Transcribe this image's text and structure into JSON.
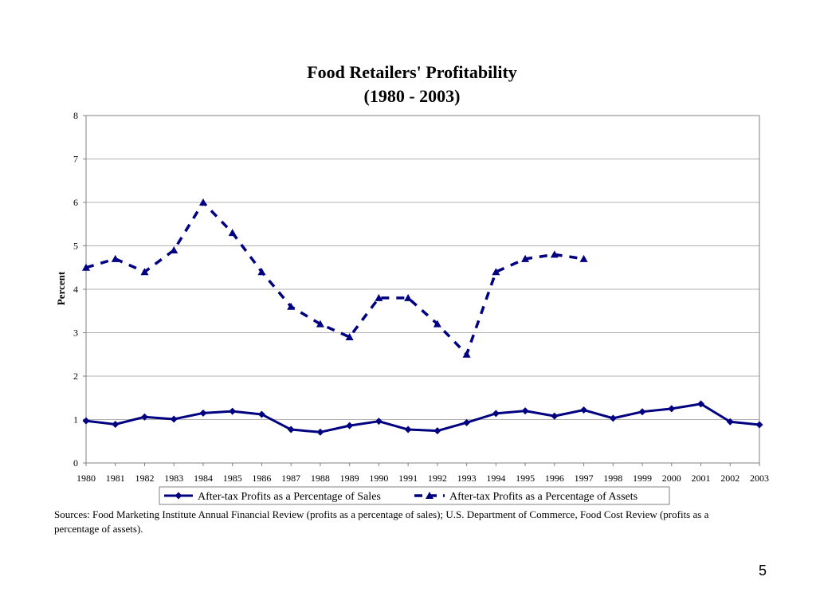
{
  "chart_data": {
    "type": "line",
    "title": "Food Retailers' Profitability",
    "subtitle": "(1980 - 2003)",
    "xlabel": "",
    "ylabel": "Percent",
    "ylim": [
      0,
      8
    ],
    "yticks": [
      "0",
      "1",
      "2",
      "3",
      "4",
      "5",
      "6",
      "7",
      "8"
    ],
    "categories": [
      "1980",
      "1981",
      "1982",
      "1983",
      "1984",
      "1985",
      "1986",
      "1987",
      "1988",
      "1989",
      "1990",
      "1991",
      "1992",
      "1993",
      "1994",
      "1995",
      "1996",
      "1997",
      "1998",
      "1999",
      "2000",
      "2001",
      "2002",
      "2003"
    ],
    "grid": "horizontal",
    "legend_position": "bottom",
    "series": [
      {
        "name": "After-tax Profits as a Percentage of Sales",
        "style": "solid",
        "marker": "diamond",
        "color": "#000080",
        "values": [
          0.97,
          0.89,
          1.06,
          1.01,
          1.15,
          1.19,
          1.12,
          0.77,
          0.71,
          0.86,
          0.96,
          0.77,
          0.74,
          0.93,
          1.14,
          1.2,
          1.08,
          1.22,
          1.03,
          1.18,
          1.25,
          1.36,
          0.95,
          0.88
        ]
      },
      {
        "name": "After-tax Profits as a Percentage of Assets",
        "style": "dashed",
        "marker": "triangle",
        "color": "#000080",
        "values": [
          4.5,
          4.7,
          4.4,
          4.9,
          6.0,
          5.3,
          4.4,
          3.6,
          3.2,
          2.9,
          3.8,
          3.8,
          3.2,
          2.5,
          4.4,
          4.7,
          4.8,
          4.7,
          null,
          null,
          null,
          null,
          null,
          null
        ]
      }
    ]
  },
  "sources": "Sources: Food Marketing Institute Annual Financial Review (profits as a percentage of sales); U.S. Department of Commerce, Food Cost Review (profits as a percentage of assets).",
  "page_number": "5"
}
